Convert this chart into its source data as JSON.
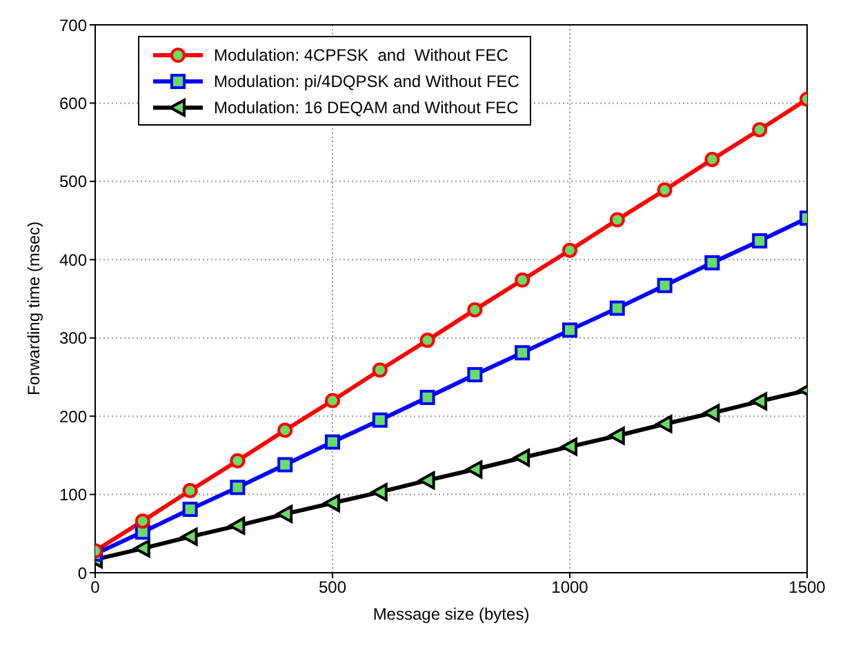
{
  "chart_data": {
    "type": "line",
    "xlabel": "Message size (bytes)",
    "ylabel": "Forwarding time (msec)",
    "x": [
      0,
      100,
      200,
      300,
      400,
      500,
      600,
      700,
      800,
      900,
      1000,
      1100,
      1200,
      1300,
      1400,
      1500
    ],
    "series": [
      {
        "name": "Modulation: 4CPFSK  and  Without FEC",
        "color": "#ff0000",
        "marker": "circle",
        "values": [
          28,
          66,
          105,
          143,
          182,
          220,
          259,
          297,
          336,
          374,
          412,
          451,
          489,
          528,
          566,
          605
        ]
      },
      {
        "name": "Modulation: pi/4DQPSK and Without FEC",
        "color": "#0000ff",
        "marker": "square",
        "values": [
          24,
          52,
          81,
          109,
          138,
          167,
          195,
          224,
          253,
          281,
          310,
          338,
          367,
          396,
          424,
          453
        ]
      },
      {
        "name": "Modulation: 16 DEQAM and Without FEC",
        "color": "#000000",
        "marker": "triangle",
        "values": [
          17,
          31,
          46,
          60,
          75,
          89,
          103,
          118,
          132,
          147,
          161,
          175,
          190,
          204,
          219,
          233
        ]
      }
    ],
    "xlim": [
      0,
      1500
    ],
    "xticks": [
      0,
      500,
      1000,
      1500
    ],
    "ylim": [
      0,
      700
    ],
    "yticks": [
      0,
      100,
      200,
      300,
      400,
      500,
      600,
      700
    ],
    "grid": true,
    "legend": "top left",
    "line_style": "solid"
  }
}
